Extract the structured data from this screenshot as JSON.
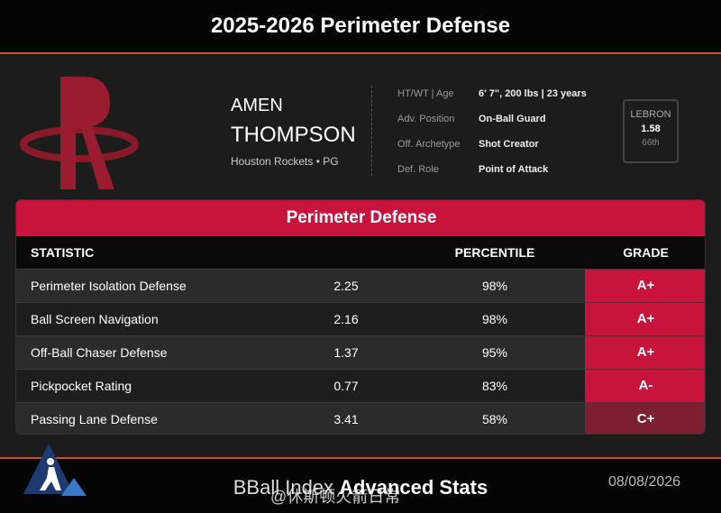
{
  "header": {
    "title": "2025-2026 Perimeter Defense"
  },
  "player": {
    "first_name": "AMEN",
    "last_name": "THOMPSON",
    "team": "Houston Rockets • PG",
    "info": [
      {
        "label": "HT/WT | Age",
        "value": "6' 7\", 200 lbs | 23 years"
      },
      {
        "label": "Adv. Position",
        "value": "On-Ball Guard"
      },
      {
        "label": "Off. Archetype",
        "value": "Shot Creator"
      },
      {
        "label": "Def. Role",
        "value": "Point of Attack"
      }
    ],
    "lebron": {
      "label": "LEBRON",
      "value": "1.58",
      "rank": "66th"
    }
  },
  "table": {
    "title": "Perimeter Defense",
    "headers": [
      "STATISTIC",
      "PERCENTILE",
      "GRADE"
    ],
    "rows": [
      [
        "Perimeter Isolation Defense",
        "2.25",
        "98%",
        "A+"
      ],
      [
        "Ball Screen Navigation",
        "2.16",
        "98%",
        "A+"
      ],
      [
        "Off-Ball Chaser Defense",
        "1.37",
        "95%",
        "A+"
      ],
      [
        "Pickpocket Rating",
        "0.77",
        "83%",
        "A-"
      ],
      [
        "Passing Lane Defense",
        "3.41",
        "58%",
        "C+"
      ]
    ]
  },
  "footer": {
    "brand": "BBall Index",
    "subtitle": "Advanced Stats",
    "date": "08/08/2026",
    "watermark": "@休斯顿火箭日常"
  }
}
